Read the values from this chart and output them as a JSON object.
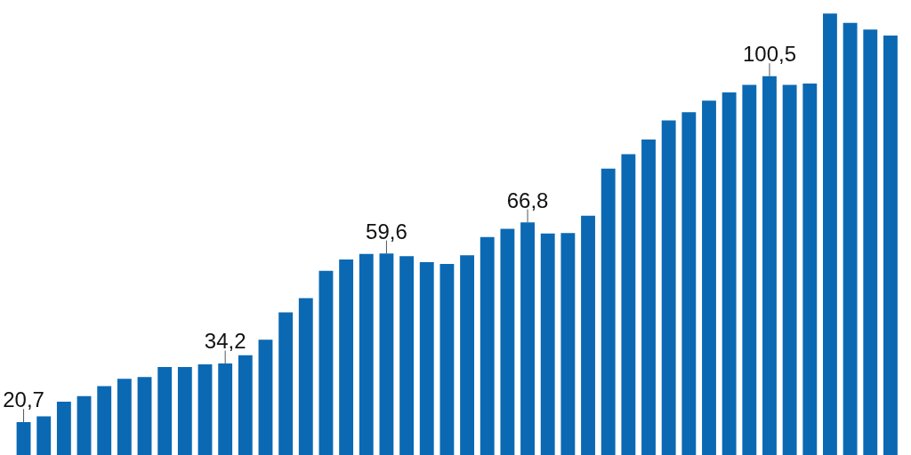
{
  "chart_data": {
    "type": "bar",
    "categories": [
      null,
      null,
      null,
      null,
      null,
      null,
      null,
      null,
      null,
      null,
      null,
      null,
      null,
      null,
      null,
      null,
      null,
      null,
      null,
      null,
      null,
      null,
      null,
      null,
      null,
      null,
      null,
      null,
      null,
      null,
      null,
      null,
      null,
      null,
      null,
      null,
      null,
      null,
      null,
      null,
      null,
      null,
      null,
      null
    ],
    "values": [
      20.7,
      22.0,
      25.4,
      26.7,
      29.0,
      30.7,
      31.1,
      33.4,
      33.4,
      34.0,
      34.2,
      36.1,
      39.7,
      46.0,
      49.3,
      55.6,
      58.2,
      59.5,
      59.6,
      59.0,
      57.6,
      57.2,
      59.2,
      63.4,
      65.3,
      66.8,
      64.2,
      64.3,
      68.3,
      79.2,
      82.5,
      85.9,
      90.3,
      92.2,
      94.9,
      96.8,
      98.5,
      100.5,
      98.5,
      98.8,
      115,
      112.8,
      111.3,
      109.9
    ],
    "value_labels": [
      "20,7",
      null,
      null,
      null,
      null,
      null,
      null,
      null,
      null,
      null,
      "34,2",
      null,
      null,
      null,
      null,
      null,
      null,
      null,
      "59,6",
      null,
      null,
      null,
      null,
      null,
      null,
      "66,8",
      null,
      null,
      null,
      null,
      null,
      null,
      null,
      null,
      null,
      null,
      null,
      "100,5",
      null,
      null,
      null,
      null,
      null,
      null
    ],
    "color": "#0b69b3",
    "ylim": [
      13,
      118
    ],
    "tick_labels": false
  }
}
